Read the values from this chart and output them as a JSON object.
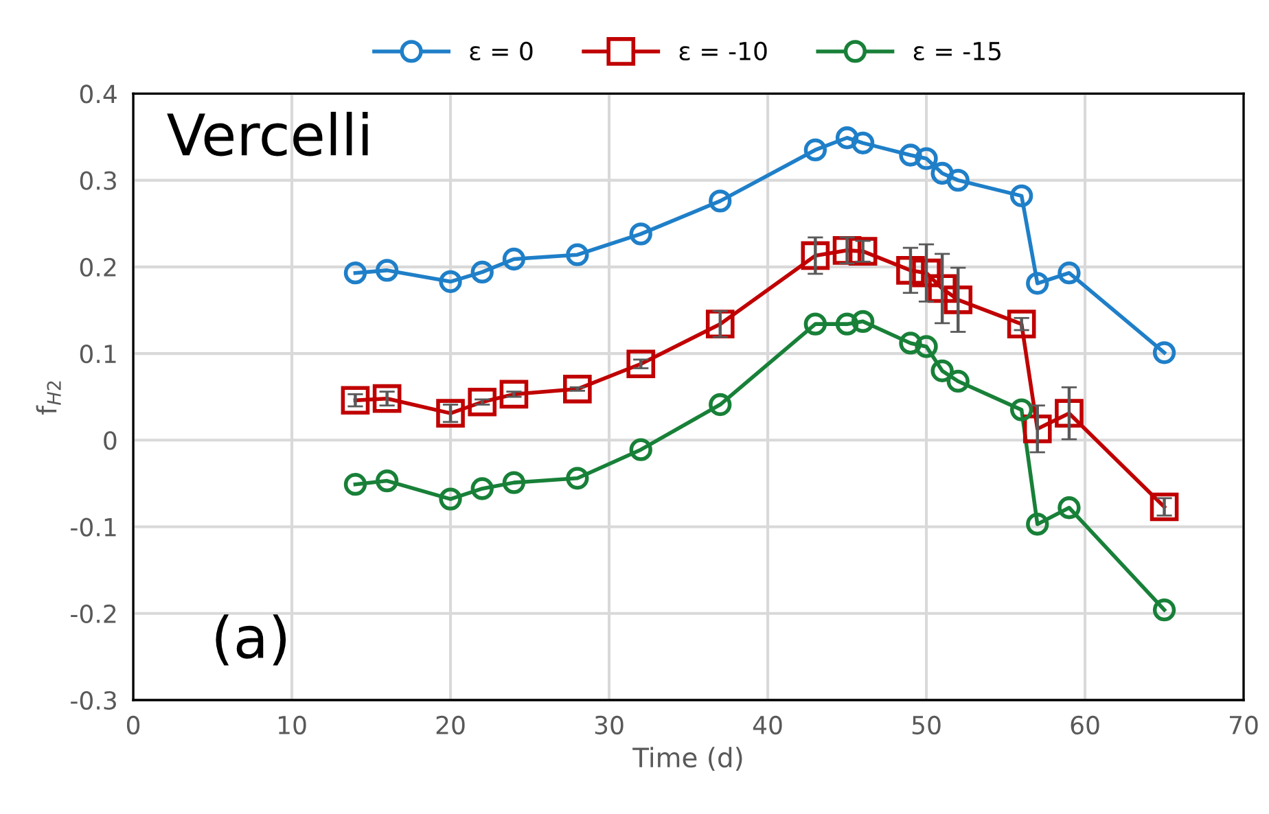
{
  "chart_data": {
    "type": "line",
    "xlabel": "Time (d)",
    "ylabel": "f$_{H2}$",
    "annotations": [
      "Vercelli",
      "(a)"
    ],
    "x": [
      14,
      16,
      20,
      22,
      24,
      28,
      32,
      37,
      43,
      45,
      46,
      49,
      50,
      51,
      52,
      56,
      57,
      59,
      65
    ],
    "xlim": [
      0,
      70
    ],
    "xticks": [
      0,
      10,
      20,
      30,
      40,
      50,
      60,
      70
    ],
    "ylim": [
      -0.3,
      0.4
    ],
    "yticks": [
      -0.3,
      -0.2,
      -0.1,
      0,
      0.1,
      0.2,
      0.3,
      0.4
    ],
    "grid": true,
    "legend": "top",
    "line_style": "solid",
    "series": [
      {
        "name": "ε = 0",
        "color": "#1f7fc8",
        "marker": "circle",
        "values": [
          0.193,
          0.196,
          0.183,
          0.194,
          0.209,
          0.214,
          0.238,
          0.276,
          0.335,
          0.349,
          0.343,
          0.329,
          0.325,
          0.308,
          0.3,
          0.282,
          0.181,
          0.193,
          0.101
        ]
      },
      {
        "name": "ε = -10",
        "color": "#c00000",
        "marker": "square",
        "values": [
          0.046,
          0.048,
          0.031,
          0.044,
          0.053,
          0.059,
          0.088,
          0.134,
          0.213,
          0.219,
          0.218,
          0.196,
          0.193,
          0.175,
          0.162,
          0.134,
          0.013,
          0.031,
          -0.077
        ],
        "errors": [
          0.007,
          0.008,
          0.01,
          0.003,
          0.003,
          0.002,
          0.005,
          0.015,
          0.021,
          0.015,
          0.012,
          0.026,
          0.033,
          0.04,
          0.037,
          0.007,
          0.027,
          0.03,
          0.01
        ]
      },
      {
        "name": "ε = -15",
        "color": "#188038",
        "marker": "circle",
        "values": [
          -0.051,
          -0.047,
          -0.068,
          -0.056,
          -0.049,
          -0.044,
          -0.011,
          0.041,
          0.134,
          0.134,
          0.137,
          0.112,
          0.108,
          0.08,
          0.068,
          0.035,
          -0.097,
          -0.078,
          -0.196
        ]
      }
    ]
  }
}
